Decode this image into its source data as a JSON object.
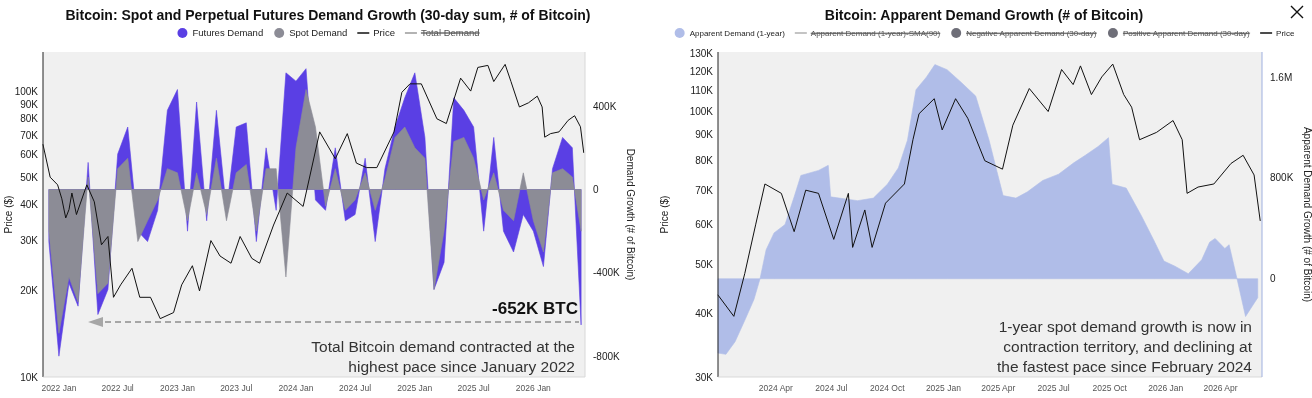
{
  "chart_data": [
    {
      "type": "area",
      "title": "Bitcoin: Spot and Perpetual Futures Demand Growth (30-day sum, # of Bitcoin)",
      "ylabel": "Price ($)",
      "y2label": "Demand Growth (# of Bitcoin)",
      "legend": "top",
      "log": "y",
      "x": [
        "2021-12",
        "2022-01",
        "2022-02",
        "2022-03",
        "2022-04",
        "2022-05",
        "2022-06",
        "2022-07",
        "2022-08",
        "2022-09",
        "2022-10",
        "2022-11",
        "2022-12",
        "2023-01",
        "2023-02",
        "2023-03",
        "2023-04",
        "2023-05",
        "2023-06",
        "2023-07",
        "2023-08",
        "2023-09",
        "2023-10",
        "2023-11",
        "2023-12",
        "2024-01",
        "2024-02",
        "2024-03",
        "2024-04",
        "2024-05",
        "2024-06",
        "2024-07",
        "2024-08",
        "2024-09",
        "2024-10",
        "2024-11",
        "2024-12",
        "2025-01",
        "2025-02",
        "2025-03",
        "2025-04",
        "2025-05",
        "2025-06",
        "2025-07",
        "2025-08",
        "2025-09",
        "2025-10",
        "2025-11",
        "2025-12",
        "2026-01",
        "2026-02",
        "2026-03",
        "2026-04",
        "2026-05",
        "2026-05-28"
      ],
      "series": [
        {
          "name": "Futures Demand",
          "color": "#5a3fe4",
          "axis": "y2",
          "values": [
            -250000,
            -800000,
            -450000,
            -560000,
            130000,
            -600000,
            -480000,
            170000,
            300000,
            -200000,
            -250000,
            -100000,
            380000,
            480000,
            -200000,
            420000,
            -150000,
            380000,
            -100000,
            300000,
            320000,
            -250000,
            200000,
            -100000,
            560000,
            520000,
            580000,
            -50000,
            -100000,
            200000,
            -150000,
            -120000,
            150000,
            -250000,
            100000,
            300000,
            440000,
            560000,
            250000,
            -480000,
            -350000,
            440000,
            380000,
            300000,
            -200000,
            250000,
            -200000,
            -300000,
            -120000,
            -200000,
            -370000,
            100000,
            250000,
            200000,
            -650000
          ]
        },
        {
          "name": "Spot Demand",
          "color": "#8c8c96",
          "axis": "y2",
          "values": [
            -200000,
            -690000,
            -420000,
            -540000,
            60000,
            -500000,
            -450000,
            100000,
            150000,
            -250000,
            -150000,
            -50000,
            100000,
            80000,
            -150000,
            80000,
            -120000,
            150000,
            -150000,
            80000,
            120000,
            -200000,
            100000,
            100000,
            -420000,
            200000,
            480000,
            300000,
            -80000,
            100000,
            -100000,
            -50000,
            80000,
            -100000,
            50000,
            250000,
            300000,
            200000,
            150000,
            -480000,
            -200000,
            230000,
            250000,
            150000,
            -50000,
            80000,
            -100000,
            -150000,
            80000,
            -150000,
            -300000,
            80000,
            100000,
            60000,
            -200000
          ]
        },
        {
          "name": "Price",
          "type": "line",
          "color": "#111111",
          "x": [
            "2021-11-13",
            "2021-12-05",
            "2021-12-28",
            "2022-01-10",
            "2022-01-22",
            "2022-02-01",
            "2022-02-10",
            "2022-02-24",
            "2022-03-28",
            "2022-04-20",
            "2022-05-12",
            "2022-06-01",
            "2022-06-18",
            "2022-07-10",
            "2022-08-14",
            "2022-09-07",
            "2022-10-10",
            "2022-11-09",
            "2022-12-20",
            "2023-01-14",
            "2023-02-16",
            "2023-03-10",
            "2023-04-14",
            "2023-05-12",
            "2023-06-15",
            "2023-07-13",
            "2023-08-18",
            "2023-09-11",
            "2023-10-24",
            "2023-12-05",
            "2024-01-23",
            "2024-03-14",
            "2024-05-01",
            "2024-06-07",
            "2024-07-05",
            "2024-08-05",
            "2024-09-06",
            "2024-10-29",
            "2024-11-22",
            "2024-12-17",
            "2025-01-21",
            "2025-03-10",
            "2025-04-08",
            "2025-05-22",
            "2025-06-22",
            "2025-07-14",
            "2025-08-14",
            "2025-09-01",
            "2025-10-06",
            "2025-10-24",
            "2025-11-19",
            "2025-12-17",
            "2026-01-13",
            "2026-01-28",
            "2026-02-05",
            "2026-02-23",
            "2026-03-21",
            "2026-04-18",
            "2026-05-08",
            "2026-05-26",
            "2026-06-05"
          ],
          "values": [
            65000,
            50000,
            47000,
            42000,
            36000,
            38500,
            44000,
            37000,
            47000,
            41000,
            29000,
            31000,
            19000,
            21000,
            24000,
            19000,
            19000,
            16000,
            16800,
            21000,
            24500,
            20000,
            30000,
            26500,
            25000,
            31000,
            26000,
            25000,
            34000,
            44000,
            39500,
            72000,
            58000,
            71000,
            56000,
            54000,
            54000,
            72000,
            99000,
            106000,
            106000,
            80000,
            77000,
            111000,
            100000,
            121000,
            123000,
            108000,
            124000,
            108000,
            88000,
            91000,
            96000,
            88000,
            69000,
            71000,
            72000,
            79000,
            82000,
            75000,
            61000
          ]
        },
        {
          "name": "Total Demand",
          "type": "line",
          "color": "#9a9a9a",
          "values": [
            null,
            null,
            null,
            null,
            null,
            null,
            null,
            null,
            null,
            null,
            null,
            null,
            null,
            null,
            null,
            null,
            null,
            null,
            null,
            null,
            null,
            null,
            null,
            null,
            null,
            null,
            null,
            null,
            null,
            null,
            null,
            null,
            null,
            null,
            null,
            null,
            null,
            null,
            null,
            null,
            null,
            null,
            null,
            null,
            null,
            null,
            null,
            null,
            null,
            null,
            null,
            null,
            null,
            null,
            null
          ]
        }
      ],
      "xlim": [
        "2021-11-13",
        "2026-06-09"
      ],
      "xticks": [
        {
          "value": "2022-01-01",
          "label": "2022 Jan"
        },
        {
          "value": "2022-07-01",
          "label": "2022 Jul"
        },
        {
          "value": "2023-01-01",
          "label": "2023 Jan"
        },
        {
          "value": "2023-07-01",
          "label": "2023 Jul"
        },
        {
          "value": "2024-01-01",
          "label": "2024 Jan"
        },
        {
          "value": "2024-07-01",
          "label": "2024 Jul"
        },
        {
          "value": "2025-01-01",
          "label": "2025 Jan"
        },
        {
          "value": "2025-07-01",
          "label": "2025 Jul"
        },
        {
          "value": "2026-01-01",
          "label": "2026 Jan"
        }
      ],
      "ylim": [
        10000,
        137000
      ],
      "yticks": [
        {
          "value": 10000,
          "label": "10K"
        },
        {
          "value": 20000,
          "label": "20K"
        },
        {
          "value": 30000,
          "label": "30K"
        },
        {
          "value": 40000,
          "label": "40K"
        },
        {
          "value": 50000,
          "label": "50K"
        },
        {
          "value": 60000,
          "label": "60K"
        },
        {
          "value": 70000,
          "label": "70K"
        },
        {
          "value": 80000,
          "label": "80K"
        },
        {
          "value": 90000,
          "label": "90K"
        },
        {
          "value": 100000,
          "label": "100K"
        }
      ],
      "y2lim": [
        -900000,
        660000
      ],
      "y2ticks": [
        {
          "value": -800000,
          "label": "-800K"
        },
        {
          "value": -400000,
          "label": "-400K"
        },
        0,
        {
          "value": 400000,
          "label": "400K"
        }
      ],
      "annotations": [
        "-652K BTC",
        "Total Bitcoin demand contracted at the\nhighest pace since January 2022"
      ]
    },
    {
      "type": "area",
      "title": "Bitcoin: Apparent Demand Growth (# of Bitcoin)",
      "ylabel": "Price ($)",
      "y2label": "Apparent Demand Growth (# of Bitcoin)",
      "legend": "top",
      "log": "y",
      "series": [
        {
          "name": "Apparent Demand (1-year)",
          "color": "#b0bde8",
          "axis": "y2",
          "x": [
            "2023-12-28",
            "2024-01-10",
            "2024-01-25",
            "2024-02-10",
            "2024-02-25",
            "2024-03-06",
            "2024-03-16",
            "2024-03-29",
            "2024-04-16",
            "2024-05-01",
            "2024-05-12",
            "2024-06-10",
            "2024-06-26",
            "2024-06-30",
            "2024-08-13",
            "2024-09-08",
            "2024-10-01",
            "2024-10-19",
            "2024-11-03",
            "2024-11-17",
            "2024-12-04",
            "2024-12-18",
            "2025-01-07",
            "2025-01-30",
            "2025-02-23",
            "2025-03-17",
            "2025-03-30",
            "2025-04-09",
            "2025-04-30",
            "2025-05-19",
            "2025-06-13",
            "2025-07-09",
            "2025-08-03",
            "2025-08-22",
            "2025-09-12",
            "2025-09-29",
            "2025-10-05",
            "2025-10-28",
            "2025-11-22",
            "2025-12-13",
            "2025-12-29",
            "2026-01-16",
            "2026-02-07",
            "2026-03-01",
            "2026-03-14",
            "2026-03-23",
            "2026-04-08",
            "2026-04-15",
            "2026-04-28",
            "2026-05-12",
            "2026-06-01"
          ],
          "values": [
            -590000,
            -600000,
            -500000,
            -330000,
            -165000,
            0,
            230000,
            364000,
            430000,
            650000,
            820000,
            860000,
            900000,
            650000,
            620000,
            640000,
            750000,
            880000,
            1100000,
            1500000,
            1600000,
            1700000,
            1660000,
            1560000,
            1450000,
            1100000,
            850000,
            660000,
            640000,
            690000,
            780000,
            830000,
            920000,
            980000,
            1050000,
            1120000,
            750000,
            720000,
            500000,
            300000,
            140000,
            100000,
            40000,
            150000,
            290000,
            320000,
            240000,
            270000,
            0,
            -300000,
            -150000
          ]
        },
        {
          "name": "Apparent Demand (1-year)-SMA(90)",
          "type": "line",
          "color": "#b0b0b0"
        },
        {
          "name": "Negative Apparent Demand (30-day)",
          "color": "#6e6e78"
        },
        {
          "name": "Positive Apparent Demand (30-day)",
          "color": "#6e6e78"
        },
        {
          "name": "Price",
          "type": "line",
          "color": "#111111",
          "x": [
            "2023-12-28",
            "2024-01-23",
            "2024-02-10",
            "2024-02-28",
            "2024-03-14",
            "2024-04-10",
            "2024-05-01",
            "2024-05-20",
            "2024-06-10",
            "2024-07-05",
            "2024-07-29",
            "2024-08-05",
            "2024-08-25",
            "2024-09-06",
            "2024-09-28",
            "2024-10-29",
            "2024-11-12",
            "2024-11-22",
            "2024-12-17",
            "2024-12-30",
            "2025-01-21",
            "2025-02-10",
            "2025-03-10",
            "2025-04-08",
            "2025-04-25",
            "2025-05-22",
            "2025-06-22",
            "2025-07-14",
            "2025-08-02",
            "2025-08-14",
            "2025-09-01",
            "2025-09-18",
            "2025-10-06",
            "2025-10-24",
            "2025-11-06",
            "2025-11-19",
            "2025-12-17",
            "2026-01-13",
            "2026-01-28",
            "2026-02-05",
            "2026-02-23",
            "2026-03-21",
            "2026-04-18",
            "2026-05-08",
            "2026-05-26",
            "2026-06-05"
          ],
          "values": [
            43500,
            39500,
            48000,
            60000,
            72000,
            69000,
            58000,
            70000,
            69000,
            56000,
            69000,
            54000,
            64000,
            54000,
            66000,
            72000,
            88000,
            99000,
            106000,
            92000,
            106000,
            97000,
            80000,
            77000,
            94000,
            111000,
            100000,
            121000,
            113000,
            123000,
            108000,
            117000,
            124000,
            108000,
            102000,
            88000,
            91000,
            96000,
            88000,
            69000,
            71000,
            72000,
            79000,
            82000,
            75000,
            61000
          ]
        }
      ],
      "xlim": [
        "2023-12-28",
        "2026-06-08"
      ],
      "xticks": [
        {
          "value": "2024-04-01",
          "label": "2024 Apr"
        },
        {
          "value": "2024-07-01",
          "label": "2024 Jul"
        },
        {
          "value": "2024-10-01",
          "label": "2024 Oct"
        },
        {
          "value": "2025-01-01",
          "label": "2025 Jan"
        },
        {
          "value": "2025-04-01",
          "label": "2025 Apr"
        },
        {
          "value": "2025-07-01",
          "label": "2025 Jul"
        },
        {
          "value": "2025-10-01",
          "label": "2025 Oct"
        },
        {
          "value": "2026-01-01",
          "label": "2026 Jan"
        },
        {
          "value": "2026-04-01",
          "label": "2026 Apr"
        }
      ],
      "ylim": [
        30000,
        131000
      ],
      "yticks": [
        {
          "value": 30000,
          "label": "30K"
        },
        {
          "value": 40000,
          "label": "40K"
        },
        {
          "value": 50000,
          "label": "50K"
        },
        {
          "value": 60000,
          "label": "60K"
        },
        {
          "value": 70000,
          "label": "70K"
        },
        {
          "value": 80000,
          "label": "80K"
        },
        {
          "value": 90000,
          "label": "90K"
        },
        {
          "value": 100000,
          "label": "100K"
        },
        {
          "value": 110000,
          "label": "110K"
        },
        {
          "value": 120000,
          "label": "120K"
        },
        {
          "value": 130000,
          "label": "130K"
        }
      ],
      "y2lim": [
        -780000,
        1800000
      ],
      "y2ticks": [
        0,
        {
          "value": 800000,
          "label": "800K"
        },
        {
          "value": 1600000,
          "label": "1.6M"
        }
      ],
      "annotations": [
        "1-year spot demand growth is now in\ncontraction territory, and declining at\nthe fastest pace since February 2024"
      ]
    }
  ]
}
